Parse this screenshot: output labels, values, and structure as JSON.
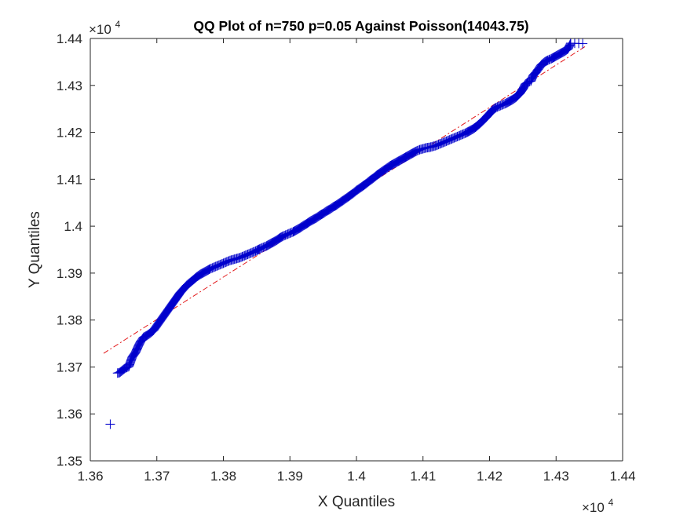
{
  "chart_data": {
    "type": "scatter",
    "title": "QQ Plot of n=750 p=0.05 Against Poisson(14043.75)",
    "xlabel": "X Quantiles",
    "ylabel": "Y Quantiles",
    "x_exponent_label": "×10",
    "x_exponent_power": "4",
    "y_exponent_label": "×10",
    "y_exponent_power": "4",
    "xlim": [
      13600,
      14400
    ],
    "ylim": [
      13500,
      14400
    ],
    "xticks": [
      13600,
      13700,
      13800,
      13900,
      14000,
      14100,
      14200,
      14300,
      14400
    ],
    "xtick_labels": [
      "1.36",
      "1.37",
      "1.38",
      "1.39",
      "1.4",
      "1.41",
      "1.42",
      "1.43",
      "1.44"
    ],
    "yticks": [
      13500,
      13600,
      13700,
      13800,
      13900,
      14000,
      14100,
      14200,
      14300,
      14400
    ],
    "ytick_labels": [
      "1.35",
      "1.36",
      "1.37",
      "1.38",
      "1.39",
      "1.4",
      "1.41",
      "1.42",
      "1.43",
      "1.44"
    ],
    "grid": false,
    "marker": "+",
    "marker_color": "#0000cc",
    "line_color": "#e31a1c",
    "line_style": "dash-dot",
    "reference_line": {
      "x": [
        13620,
        14345
      ],
      "y": [
        13729,
        14384
      ]
    },
    "points": [
      [
        13630,
        13578
      ],
      [
        13641,
        13687
      ],
      [
        13644,
        13688
      ],
      [
        13652,
        13697
      ],
      [
        13658,
        13701
      ],
      [
        13663,
        13721
      ],
      [
        13668,
        13731
      ],
      [
        13672,
        13744
      ],
      [
        13676,
        13755
      ],
      [
        13680,
        13763
      ],
      [
        13685,
        13767
      ],
      [
        13690,
        13772
      ],
      [
        13695,
        13778
      ],
      [
        13700,
        13788
      ],
      [
        13705,
        13798
      ],
      [
        13710,
        13808
      ],
      [
        13715,
        13818
      ],
      [
        13720,
        13828
      ],
      [
        13725,
        13838
      ],
      [
        13730,
        13848
      ],
      [
        13735,
        13858
      ],
      [
        13740,
        13866
      ],
      [
        13745,
        13874
      ],
      [
        13750,
        13880
      ],
      [
        13755,
        13886
      ],
      [
        13760,
        13892
      ],
      [
        13765,
        13897
      ],
      [
        13770,
        13901
      ],
      [
        13775,
        13905
      ],
      [
        13780,
        13909
      ],
      [
        13785,
        13912
      ],
      [
        13790,
        13915
      ],
      [
        13795,
        13918
      ],
      [
        13800,
        13921
      ],
      [
        13805,
        13924
      ],
      [
        13810,
        13927
      ],
      [
        13815,
        13929
      ],
      [
        13820,
        13931
      ],
      [
        13825,
        13933
      ],
      [
        13830,
        13936
      ],
      [
        13835,
        13939
      ],
      [
        13840,
        13942
      ],
      [
        13845,
        13945
      ],
      [
        13850,
        13948
      ],
      [
        13855,
        13952
      ],
      [
        13860,
        13955
      ],
      [
        13865,
        13958
      ],
      [
        13870,
        13962
      ],
      [
        13875,
        13966
      ],
      [
        13880,
        13970
      ],
      [
        13885,
        13975
      ],
      [
        13890,
        13979
      ],
      [
        13895,
        13982
      ],
      [
        13900,
        13985
      ],
      [
        13905,
        13988
      ],
      [
        13910,
        13992
      ],
      [
        13915,
        13996
      ],
      [
        13920,
        14001
      ],
      [
        13925,
        14005
      ],
      [
        13930,
        14010
      ],
      [
        13935,
        14014
      ],
      [
        13940,
        14018
      ],
      [
        13945,
        14023
      ],
      [
        13950,
        14027
      ],
      [
        13955,
        14032
      ],
      [
        13960,
        14036
      ],
      [
        13965,
        14041
      ],
      [
        13970,
        14045
      ],
      [
        13975,
        14050
      ],
      [
        13980,
        14055
      ],
      [
        13985,
        14060
      ],
      [
        13990,
        14065
      ],
      [
        13995,
        14070
      ],
      [
        14000,
        14076
      ],
      [
        14005,
        14081
      ],
      [
        14010,
        14086
      ],
      [
        14015,
        14091
      ],
      [
        14020,
        14097
      ],
      [
        14025,
        14102
      ],
      [
        14030,
        14108
      ],
      [
        14035,
        14113
      ],
      [
        14040,
        14118
      ],
      [
        14045,
        14123
      ],
      [
        14050,
        14128
      ],
      [
        14055,
        14132
      ],
      [
        14060,
        14136
      ],
      [
        14065,
        14140
      ],
      [
        14070,
        14144
      ],
      [
        14075,
        14148
      ],
      [
        14080,
        14152
      ],
      [
        14085,
        14156
      ],
      [
        14090,
        14160
      ],
      [
        14095,
        14163
      ],
      [
        14100,
        14165
      ],
      [
        14105,
        14167
      ],
      [
        14110,
        14168
      ],
      [
        14115,
        14170
      ],
      [
        14120,
        14172
      ],
      [
        14125,
        14175
      ],
      [
        14130,
        14178
      ],
      [
        14135,
        14181
      ],
      [
        14140,
        14184
      ],
      [
        14145,
        14187
      ],
      [
        14150,
        14190
      ],
      [
        14155,
        14193
      ],
      [
        14160,
        14196
      ],
      [
        14165,
        14199
      ],
      [
        14170,
        14203
      ],
      [
        14175,
        14207
      ],
      [
        14180,
        14212
      ],
      [
        14185,
        14218
      ],
      [
        14190,
        14225
      ],
      [
        14195,
        14232
      ],
      [
        14200,
        14240
      ],
      [
        14205,
        14248
      ],
      [
        14210,
        14253
      ],
      [
        14215,
        14256
      ],
      [
        14220,
        14259
      ],
      [
        14225,
        14262
      ],
      [
        14230,
        14266
      ],
      [
        14235,
        14270
      ],
      [
        14240,
        14275
      ],
      [
        14245,
        14282
      ],
      [
        14250,
        14292
      ],
      [
        14254,
        14303
      ],
      [
        14258,
        14307
      ],
      [
        14262,
        14309
      ],
      [
        14266,
        14322
      ],
      [
        14270,
        14328
      ],
      [
        14274,
        14336
      ],
      [
        14278,
        14344
      ],
      [
        14283,
        14350
      ],
      [
        14288,
        14354
      ],
      [
        14293,
        14357
      ],
      [
        14298,
        14361
      ],
      [
        14303,
        14365
      ],
      [
        14308,
        14369
      ],
      [
        14313,
        14373
      ],
      [
        14318,
        14378
      ],
      [
        14322,
        14390
      ],
      [
        14340,
        14389
      ]
    ]
  }
}
